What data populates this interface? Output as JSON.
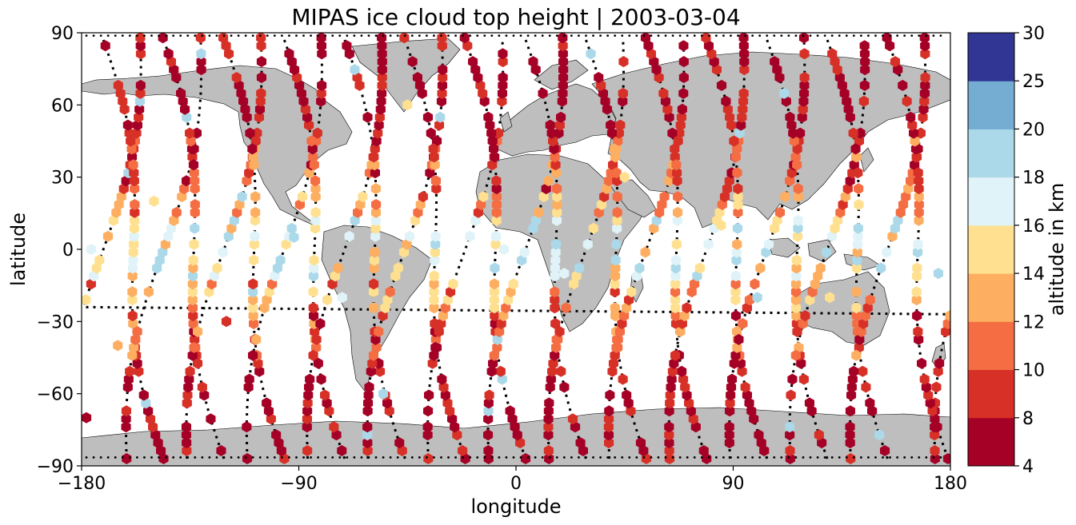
{
  "figure": {
    "title": "MIPAS ice cloud top height | 2003-03-04",
    "xlabel": "longitude",
    "ylabel": "latitude",
    "colorbar_label": "altitude in km"
  },
  "chart_data": {
    "type": "scatter",
    "projection": "plate-carree",
    "xlim": [
      -180,
      180
    ],
    "ylim": [
      -90,
      90
    ],
    "x_ticks": [
      "−180",
      "−90",
      "0",
      "90",
      "180"
    ],
    "y_ticks": [
      "90",
      "60",
      "30",
      "0",
      "−30",
      "−60",
      "−90"
    ],
    "x_tick_values": [
      -180,
      -90,
      0,
      90,
      180
    ],
    "y_tick_values": [
      90,
      60,
      30,
      0,
      -30,
      -60,
      -90
    ],
    "colorbar": {
      "boundaries": [
        4,
        8,
        10,
        12,
        14,
        16,
        18,
        20,
        25,
        30
      ],
      "tick_labels": [
        "4",
        "8",
        "10",
        "12",
        "14",
        "16",
        "18",
        "20",
        "25",
        "30"
      ],
      "colors": [
        "#a50026",
        "#d73027",
        "#f46d43",
        "#fdae61",
        "#fee090",
        "#e0f3f8",
        "#abd9e9",
        "#74add1",
        "#313695"
      ],
      "placement": "right"
    },
    "land_color": "#bdbdbd",
    "marker": "hexagon",
    "orbit_tracks_lon_at_equator": [
      -171,
      -146,
      -121,
      -96,
      -71,
      -46,
      -21,
      4,
      29,
      54,
      79,
      104,
      129,
      154
    ],
    "sample_points": [
      {
        "lon": -178,
        "lat": -70,
        "value": 6
      },
      {
        "lon": -176,
        "lat": 0,
        "value": 17
      },
      {
        "lon": -165,
        "lat": -40,
        "value": 13
      },
      {
        "lon": -150,
        "lat": 20,
        "value": 15
      },
      {
        "lon": -120,
        "lat": -30,
        "value": 9
      },
      {
        "lon": -92,
        "lat": 5,
        "value": 19
      },
      {
        "lon": -72,
        "lat": -20,
        "value": 17
      },
      {
        "lon": -55,
        "lat": -60,
        "value": 19
      },
      {
        "lon": -45,
        "lat": 60,
        "value": 14
      },
      {
        "lon": -5,
        "lat": 0,
        "value": 17
      },
      {
        "lon": 20,
        "lat": -10,
        "value": 17
      },
      {
        "lon": 45,
        "lat": 30,
        "value": 14
      },
      {
        "lon": 85,
        "lat": 10,
        "value": 15
      },
      {
        "lon": 100,
        "lat": -20,
        "value": 19
      },
      {
        "lon": 130,
        "lat": -20,
        "value": 15
      },
      {
        "lon": 175,
        "lat": -10,
        "value": 19
      }
    ]
  }
}
